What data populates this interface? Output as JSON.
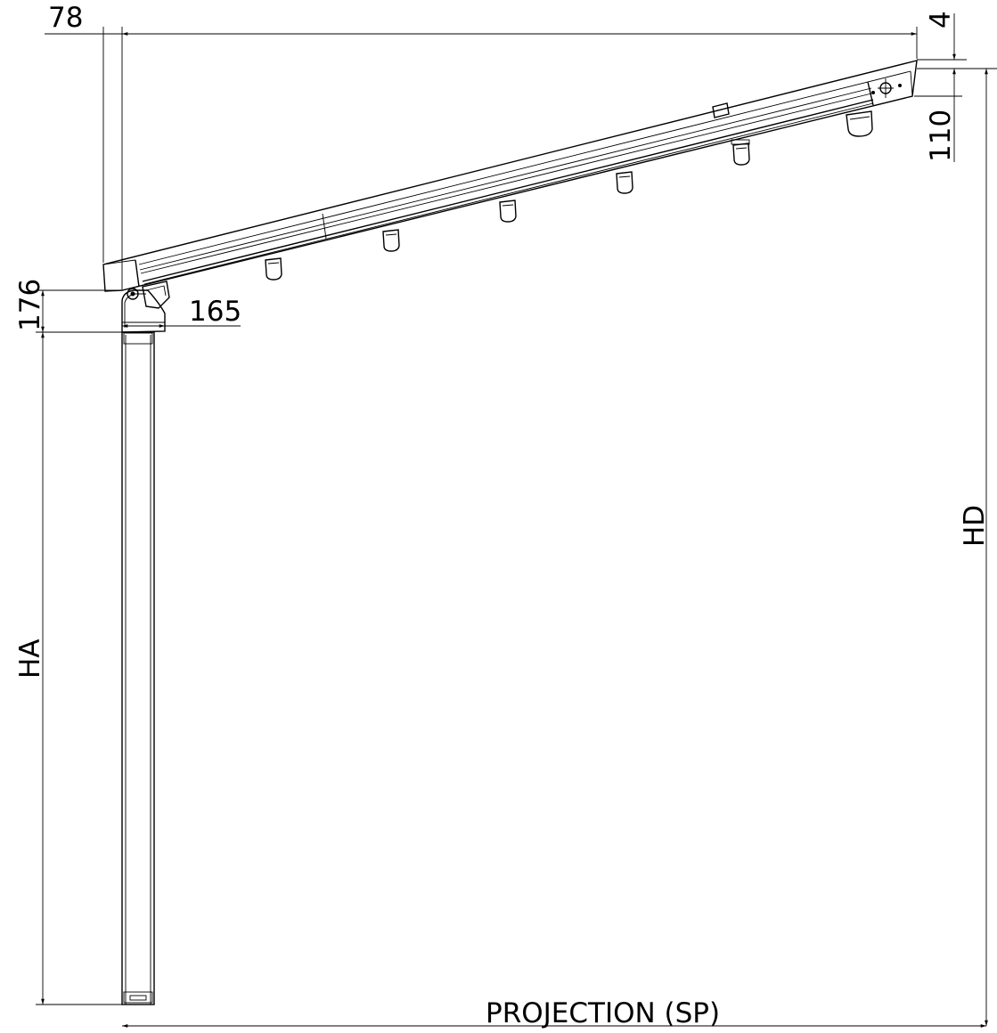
{
  "dimensions": {
    "top_offset": "78",
    "top_gap": "4",
    "right_height": "110",
    "bracket_height": "176",
    "bracket_width": "165",
    "post_height": "HA",
    "total_height": "HD",
    "projection": "PROJECTION (SP)"
  }
}
